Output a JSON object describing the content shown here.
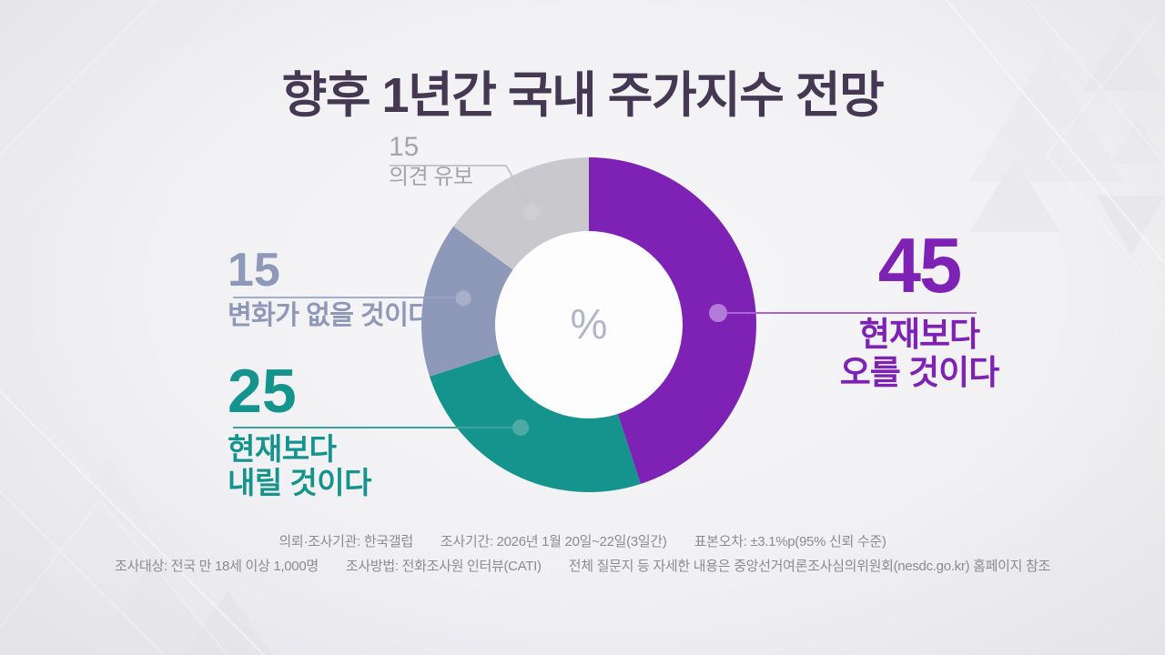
{
  "title": "향후 1년간 국내 주가지수 전망",
  "chart_data": {
    "type": "pie",
    "subtype": "donut",
    "unit": "%",
    "center_label": "%",
    "start_angle_deg": 0,
    "direction": "clockwise",
    "title": "향후 1년간 국내 주가지수 전망",
    "legend_position": "callout-labels",
    "segments": [
      {
        "label": "현재보다 오를 것이다",
        "value": 45,
        "color": "#7d22b5"
      },
      {
        "label": "현재보다 내릴 것이다",
        "value": 25,
        "color": "#15948e"
      },
      {
        "label": "변화가 없을 것이다",
        "value": 15,
        "color": "#8e99b9"
      },
      {
        "label": "의견 유보",
        "value": 15,
        "color": "#c9c9cd"
      }
    ]
  },
  "callouts": {
    "rise": {
      "value": "45",
      "line1": "현재보다",
      "line2": "오를 것이다",
      "color": "#7d22b5"
    },
    "fall": {
      "value": "25",
      "line1": "현재보다",
      "line2": "내릴 것이다",
      "color": "#15948e"
    },
    "no_change": {
      "value": "15",
      "line1": "변화가 없을 것이다",
      "color": "#8e99b9"
    },
    "reserved": {
      "value": "15",
      "line1": "의견 유보",
      "color": "#a4a4aa"
    }
  },
  "footer": {
    "row1": [
      "의뢰·조사기관: 한국갤럽",
      "조사기간: 2026년 1월 20일~22일(3일간)",
      "표본오차: ±3.1%p(95% 신뢰 수준)"
    ],
    "row2": [
      "조사대상: 전국 만 18세 이상 1,000명",
      "조사방법: 전화조사원 인터뷰(CATI)",
      "전체 질문지 등 자세한 내용은 중앙선거여론조사심의위원회(nesdc.go.kr) 홈페이지 참조"
    ]
  },
  "colors": {
    "title": "#453852",
    "background": "#f1f1f4",
    "center_symbol": "#b2b5c8",
    "footer_text": "#8b8b91"
  }
}
